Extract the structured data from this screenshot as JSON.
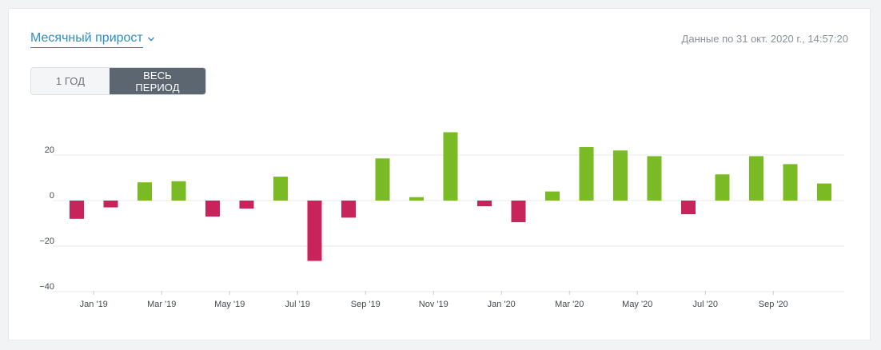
{
  "header": {
    "title": "Месячный прирост",
    "timestamp": "Данные по 31 окт. 2020 г., 14:57:20"
  },
  "period_buttons": [
    {
      "label": "1 ГОД",
      "active": false
    },
    {
      "label": "ВЕСЬ ПЕРИОД",
      "active": true
    }
  ],
  "colors": {
    "positive": "#7aba25",
    "negative": "#c8235a",
    "link": "#2e8ec6",
    "grid": "#e6e8eb"
  },
  "chart_data": {
    "type": "bar",
    "x_ticks": [
      "Jan '19",
      "Mar '19",
      "May '19",
      "Jul '19",
      "Sep '19",
      "Nov '19",
      "Jan '20",
      "Mar '20",
      "May '20",
      "Jul '20",
      "Sep '20"
    ],
    "y_ticks": [
      20,
      0,
      -20,
      -40
    ],
    "ylim": [
      -40,
      30
    ],
    "series": [
      {
        "values": [
          -8,
          -3,
          8,
          8.5,
          -7,
          -3.5,
          10.5,
          -26.5,
          -7.5,
          18.5,
          1.5,
          30,
          -2.5,
          -9.5,
          4,
          23.5,
          22,
          19.5,
          -6,
          11.5,
          19.5,
          16,
          7.5
        ]
      }
    ],
    "grid": true,
    "legend": "none"
  }
}
